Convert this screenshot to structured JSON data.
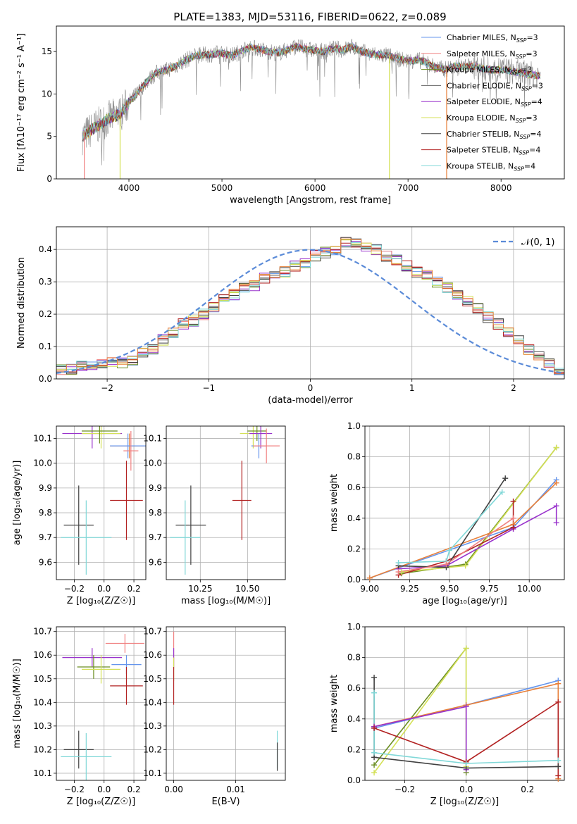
{
  "figure": {
    "title": "PLATE=1383, MJD=53116, FIBERID=0622, z=0.089"
  },
  "colors": {
    "chabrier_miles": "#6495ed",
    "salpeter_miles": "#f08080",
    "kroupa_miles": "#6b8e23",
    "chabrier_elodie": "#666666",
    "salpeter_elodie": "#9932cc",
    "kroupa_elodie": "#d4e157",
    "chabrier_stelib": "#404040",
    "salpeter_stelib": "#b22222",
    "kroupa_stelib": "#80d8d8",
    "orange": "#e8803a",
    "grid": "#b0b0b0"
  },
  "chart_data": [
    {
      "id": "spectrum",
      "type": "line",
      "xlabel": "wavelength [Angstrom, rest frame]",
      "ylabel": "Flux [f$_\\lambda$10$^{-17}$ erg cm$^{-2}$ s$^{-1}$ A$^{-1}$]",
      "ylabel_display": "Flux [fλ10⁻¹⁷ erg cm⁻² s⁻¹ A⁻¹]",
      "xlim": [
        3220,
        8680
      ],
      "ylim": [
        0,
        18
      ],
      "xticks": [
        4000,
        5000,
        6000,
        7000,
        8000
      ],
      "yticks": [
        0,
        5,
        10,
        15
      ],
      "grid": false,
      "legend_placement": "right",
      "series": [
        {
          "name": "Chabrier MILES, N_SSP=3",
          "label_main": "Chabrier MILES, N",
          "label_sub": "SSP",
          "label_end": "=3",
          "color_key": "chabrier_miles"
        },
        {
          "name": "Salpeter MILES, N_SSP=3",
          "label_main": "Salpeter MILES, N",
          "label_sub": "SSP",
          "label_end": "=3",
          "color_key": "salpeter_miles"
        },
        {
          "name": "Kroupa MILES, N_SSP=3",
          "label_main": "Kroupa MILES, N",
          "label_sub": "SSP",
          "label_end": "=3",
          "color_key": "kroupa_miles"
        },
        {
          "name": "Chabrier ELODIE, N_SSP=3",
          "label_main": "Chabrier ELODIE, N",
          "label_sub": "SSP",
          "label_end": "=3",
          "color_key": "chabrier_elodie"
        },
        {
          "name": "Salpeter ELODIE, N_SSP=4",
          "label_main": "Salpeter ELODIE, N",
          "label_sub": "SSP",
          "label_end": "=4",
          "color_key": "salpeter_elodie"
        },
        {
          "name": "Kroupa ELODIE, N_SSP=3",
          "label_main": "Kroupa ELODIE, N",
          "label_sub": "SSP",
          "label_end": "=3",
          "color_key": "kroupa_elodie"
        },
        {
          "name": "Chabrier STELIB, N_SSP=4",
          "label_main": "Chabrier STELIB, N",
          "label_sub": "SSP",
          "label_end": "=4",
          "color_key": "chabrier_stelib"
        },
        {
          "name": "Salpeter STELIB, N_SSP=4",
          "label_main": "Salpeter STELIB, N",
          "label_sub": "SSP",
          "label_end": "=4",
          "color_key": "salpeter_stelib"
        },
        {
          "name": "Kroupa STELIB, N_SSP=4",
          "label_main": "Kroupa STELIB, N",
          "label_sub": "SSP",
          "label_end": "=4",
          "color_key": "kroupa_stelib"
        }
      ],
      "continuum": {
        "x": [
          3500,
          3600,
          3700,
          3800,
          3900,
          4000,
          4100,
          4200,
          4300,
          4400,
          4500,
          4600,
          4700,
          4800,
          4900,
          5000,
          5100,
          5200,
          5300,
          5400,
          5500,
          5600,
          5700,
          5800,
          5900,
          6000,
          6100,
          6200,
          6300,
          6400,
          6500,
          6600,
          6700,
          6800,
          6900,
          7000,
          7100,
          7200,
          7300,
          7400,
          7500,
          7600,
          7700,
          7800,
          7900,
          8000,
          8100,
          8200,
          8300,
          8400
        ],
        "y": [
          5.0,
          5.8,
          6.5,
          7.2,
          7.6,
          9.0,
          10.2,
          11.6,
          12.5,
          12.8,
          13.3,
          13.9,
          14.5,
          14.6,
          14.7,
          14.8,
          14.5,
          15.0,
          15.5,
          15.3,
          15.0,
          14.8,
          15.2,
          15.6,
          15.3,
          15.1,
          15.0,
          15.4,
          15.2,
          15.6,
          15.0,
          14.7,
          14.6,
          14.5,
          14.1,
          13.9,
          14.0,
          13.7,
          13.1,
          12.9,
          13.3,
          13.2,
          13.3,
          13.0,
          12.8,
          12.9,
          12.7,
          12.5,
          12.3,
          12.2
        ]
      },
      "notable_drops": [
        {
          "x": 3520,
          "to": 0,
          "color_key": "salpeter_miles"
        },
        {
          "x": 3905,
          "to": 0,
          "color_key": "kroupa_elodie"
        },
        {
          "x": 6800,
          "to": 0,
          "color_key": "kroupa_elodie"
        },
        {
          "x": 7415,
          "to": 0,
          "color_key": "orange"
        }
      ]
    },
    {
      "id": "residuals",
      "type": "histogram",
      "xlabel": "(data-model)/error",
      "ylabel": "Normed distribution",
      "xlim": [
        -2.5,
        2.5
      ],
      "ylim": [
        0,
        0.47
      ],
      "xticks": [
        -2,
        -1,
        0,
        1,
        2
      ],
      "yticks": [
        0.0,
        0.1,
        0.2,
        0.3,
        0.4
      ],
      "grid": true,
      "legend_placement": "top-right",
      "legend_label": "𝒩(0, 1)",
      "reference_curve": "standard normal, dashed",
      "bin_width": 0.1,
      "approx_heights": [
        0.03,
        0.03,
        0.04,
        0.04,
        0.05,
        0.05,
        0.05,
        0.06,
        0.08,
        0.09,
        0.12,
        0.14,
        0.17,
        0.18,
        0.2,
        0.22,
        0.25,
        0.26,
        0.28,
        0.29,
        0.31,
        0.32,
        0.33,
        0.35,
        0.36,
        0.38,
        0.39,
        0.4,
        0.42,
        0.42,
        0.41,
        0.4,
        0.38,
        0.37,
        0.35,
        0.33,
        0.32,
        0.3,
        0.28,
        0.26,
        0.24,
        0.22,
        0.19,
        0.17,
        0.14,
        0.12,
        0.09,
        0.07,
        0.05,
        0.03
      ]
    },
    {
      "id": "age_vs_Z",
      "type": "scatter",
      "xlabel": "Z [log₁₀(Z/Z☉)]",
      "ylabel": "age  [log₁₀(age/yr)]",
      "xlim": [
        -0.32,
        0.28
      ],
      "ylim": [
        9.53,
        10.15
      ],
      "xticks": [
        -0.2,
        0.0,
        0.2
      ],
      "yticks": [
        9.6,
        9.7,
        9.8,
        9.9,
        10.0,
        10.1
      ],
      "grid": true,
      "points": [
        {
          "x": -0.08,
          "y": 10.12,
          "xerr": 0.2,
          "yerr": 0.06,
          "color_key": "salpeter_elodie"
        },
        {
          "x": -0.02,
          "y": 10.12,
          "xerr": 0.13,
          "yerr": 0.06,
          "color_key": "kroupa_elodie"
        },
        {
          "x": -0.03,
          "y": 10.13,
          "xerr": 0.12,
          "yerr": 0.05,
          "color_key": "kroupa_miles"
        },
        {
          "x": 0.17,
          "y": 10.07,
          "xerr": 0.13,
          "yerr": 0.05,
          "color_key": "orange"
        },
        {
          "x": 0.16,
          "y": 10.07,
          "xerr": 0.12,
          "yerr": 0.05,
          "color_key": "chabrier_miles"
        },
        {
          "x": 0.18,
          "y": 10.05,
          "xerr": 0.05,
          "yerr": 0.08,
          "color_key": "salpeter_miles"
        },
        {
          "x": 0.15,
          "y": 9.85,
          "xerr": 0.11,
          "yerr": 0.16,
          "color_key": "salpeter_stelib"
        },
        {
          "x": -0.17,
          "y": 9.75,
          "xerr": 0.1,
          "yerr": 0.16,
          "color_key": "chabrier_stelib"
        },
        {
          "x": -0.12,
          "y": 9.7,
          "xerr": 0.17,
          "yerr": 0.15,
          "color_key": "kroupa_stelib"
        }
      ]
    },
    {
      "id": "age_vs_mass",
      "type": "scatter",
      "xlabel": "mass [log₁₀(M/M☉)]",
      "ylabel": "",
      "xlim": [
        10.07,
        10.7
      ],
      "ylim": [
        9.53,
        10.15
      ],
      "xticks": [
        10.25,
        10.5
      ],
      "yticks": [
        9.6,
        9.7,
        9.8,
        9.9,
        10.0,
        10.1
      ],
      "grid": true,
      "points": [
        {
          "x": 10.53,
          "y": 10.12,
          "xerr": 0.07,
          "yerr": 0.06,
          "color_key": "kroupa_elodie"
        },
        {
          "x": 10.55,
          "y": 10.13,
          "xerr": 0.05,
          "yerr": 0.04,
          "color_key": "kroupa_miles"
        },
        {
          "x": 10.57,
          "y": 10.12,
          "xerr": 0.06,
          "yerr": 0.06,
          "color_key": "salpeter_elodie"
        },
        {
          "x": 10.56,
          "y": 10.07,
          "xerr": 0.04,
          "yerr": 0.05,
          "color_key": "chabrier_miles"
        },
        {
          "x": 10.6,
          "y": 10.07,
          "xerr": 0.07,
          "yerr": 0.07,
          "color_key": "salpeter_miles"
        },
        {
          "x": 10.47,
          "y": 9.85,
          "xerr": 0.05,
          "yerr": 0.16,
          "color_key": "salpeter_stelib"
        },
        {
          "x": 10.2,
          "y": 9.75,
          "xerr": 0.08,
          "yerr": 0.16,
          "color_key": "chabrier_stelib"
        },
        {
          "x": 10.17,
          "y": 9.7,
          "xerr": 0.08,
          "yerr": 0.15,
          "color_key": "kroupa_stelib"
        }
      ]
    },
    {
      "id": "weight_vs_age",
      "type": "line",
      "xlabel": "age  [log₁₀(age/yr)]",
      "ylabel": "mass weight",
      "xlim": [
        8.97,
        10.22
      ],
      "ylim": [
        0,
        1
      ],
      "xticks": [
        9.0,
        9.25,
        9.5,
        9.75,
        10.0
      ],
      "yticks": [
        0.0,
        0.2,
        0.4,
        0.6,
        0.8,
        1.0
      ],
      "grid": true,
      "series": [
        {
          "color_key": "kroupa_miles",
          "x": [
            9.2,
            9.6,
            10.17
          ],
          "y": [
            0.04,
            0.1,
            0.86
          ]
        },
        {
          "color_key": "kroupa_elodie",
          "x": [
            9.2,
            9.6,
            10.17
          ],
          "y": [
            0.05,
            0.09,
            0.86
          ]
        },
        {
          "color_key": "chabrier_miles",
          "x": [
            9.0,
            9.9,
            10.17
          ],
          "y": [
            0.01,
            0.34,
            0.65
          ]
        },
        {
          "color_key": "orange",
          "x": [
            9.0,
            9.9,
            10.17
          ],
          "y": [
            0.01,
            0.36,
            0.63
          ]
        },
        {
          "color_key": "salpeter_elodie",
          "x": [
            9.18,
            9.48,
            9.9,
            10.17,
            10.17
          ],
          "y": [
            0.07,
            0.09,
            0.33,
            0.48,
            0.37
          ]
        },
        {
          "color_key": "salpeter_stelib",
          "x": [
            9.18,
            9.48,
            9.9,
            9.9
          ],
          "y": [
            0.03,
            0.12,
            0.34,
            0.51
          ]
        },
        {
          "color_key": "chabrier_stelib",
          "x": [
            9.18,
            9.48,
            9.85
          ],
          "y": [
            0.09,
            0.08,
            0.66
          ]
        },
        {
          "color_key": "kroupa_stelib",
          "x": [
            9.18,
            9.48,
            9.5,
            9.83
          ],
          "y": [
            0.11,
            0.12,
            0.19,
            0.57
          ]
        },
        {
          "color_key": "salpeter_miles",
          "x": [
            9.18,
            9.48,
            9.9
          ],
          "y": [
            0.05,
            0.1,
            0.4
          ]
        }
      ]
    },
    {
      "id": "mass_vs_Z",
      "type": "scatter",
      "xlabel": "Z [log₁₀(Z/Z☉)]",
      "ylabel": "mass [log₁₀(M/M☉)]",
      "xlim": [
        -0.32,
        0.28
      ],
      "ylim": [
        10.07,
        10.72
      ],
      "xticks": [
        -0.2,
        0.0,
        0.2
      ],
      "yticks": [
        10.1,
        10.2,
        10.3,
        10.4,
        10.5,
        10.6,
        10.7
      ],
      "grid": true,
      "points": [
        {
          "x": 0.14,
          "y": 10.65,
          "xerr": 0.13,
          "yerr": 0.04,
          "color_key": "salpeter_miles"
        },
        {
          "x": -0.08,
          "y": 10.59,
          "xerr": 0.2,
          "yerr": 0.04,
          "color_key": "salpeter_elodie"
        },
        {
          "x": 0.15,
          "y": 10.56,
          "xerr": 0.1,
          "yerr": 0.04,
          "color_key": "chabrier_miles"
        },
        {
          "x": -0.07,
          "y": 10.55,
          "xerr": 0.11,
          "yerr": 0.05,
          "color_key": "kroupa_miles"
        },
        {
          "x": -0.02,
          "y": 10.54,
          "xerr": 0.13,
          "yerr": 0.06,
          "color_key": "kroupa_elodie"
        },
        {
          "x": 0.15,
          "y": 10.47,
          "xerr": 0.11,
          "yerr": 0.08,
          "color_key": "salpeter_stelib"
        },
        {
          "x": -0.17,
          "y": 10.2,
          "xerr": 0.1,
          "yerr": 0.08,
          "color_key": "chabrier_stelib"
        },
        {
          "x": -0.12,
          "y": 10.17,
          "xerr": 0.17,
          "yerr": 0.1,
          "color_key": "kroupa_stelib"
        }
      ]
    },
    {
      "id": "mass_vs_EBV",
      "type": "scatter",
      "xlabel": "E(B-V)",
      "ylabel": "",
      "xlim": [
        -0.0012,
        0.018
      ],
      "ylim": [
        10.07,
        10.72
      ],
      "xticks": [
        0.0,
        0.01
      ],
      "xtick_labels": [
        "0.00",
        "0.01"
      ],
      "yticks": [
        10.1,
        10.2,
        10.3,
        10.4,
        10.5,
        10.6,
        10.7
      ],
      "grid": true,
      "points": [
        {
          "x": 0.0,
          "y": 10.62,
          "xerr": 0,
          "yerr": 0.08,
          "color_key": "salpeter_miles"
        },
        {
          "x": 0.0,
          "y": 10.59,
          "xerr": 0,
          "yerr": 0.04,
          "color_key": "salpeter_elodie"
        },
        {
          "x": 0.0,
          "y": 10.54,
          "xerr": 0,
          "yerr": 0.05,
          "color_key": "kroupa_elodie"
        },
        {
          "x": 0.0,
          "y": 10.47,
          "xerr": 0,
          "yerr": 0.08,
          "color_key": "salpeter_stelib"
        },
        {
          "x": 0.0167,
          "y": 10.2,
          "xerr": 0,
          "yerr": 0.08,
          "color_key": "kroupa_stelib"
        },
        {
          "x": 0.0167,
          "y": 10.17,
          "xerr": 0,
          "yerr": 0.06,
          "color_key": "chabrier_stelib"
        }
      ]
    },
    {
      "id": "weight_vs_Z",
      "type": "line",
      "xlabel": "Z [log₁₀(Z/Z☉)]",
      "ylabel": "mass weight",
      "xlim": [
        -0.33,
        0.32
      ],
      "ylim": [
        0,
        1
      ],
      "xticks": [
        -0.2,
        0.0,
        0.2
      ],
      "yticks": [
        0.0,
        0.2,
        0.4,
        0.6,
        0.8,
        1.0
      ],
      "grid": true,
      "series": [
        {
          "color_key": "kroupa_miles",
          "x": [
            -0.3,
            0.0,
            0.0
          ],
          "y": [
            0.1,
            0.86,
            0.05
          ]
        },
        {
          "color_key": "kroupa_elodie",
          "x": [
            -0.3,
            0.0,
            0.0
          ],
          "y": [
            0.05,
            0.86,
            0.09
          ]
        },
        {
          "color_key": "chabrier_miles",
          "x": [
            -0.3,
            0.0,
            0.3
          ],
          "y": [
            0.34,
            0.49,
            0.65
          ]
        },
        {
          "color_key": "orange",
          "x": [
            -0.3,
            0.0,
            0.3,
            0.3
          ],
          "y": [
            0.35,
            0.49,
            0.63,
            0.01
          ]
        },
        {
          "color_key": "salpeter_elodie",
          "x": [
            -0.3,
            0.0,
            0.0
          ],
          "y": [
            0.35,
            0.48,
            0.07
          ]
        },
        {
          "color_key": "salpeter_stelib",
          "x": [
            -0.3,
            0.0,
            0.3,
            0.3
          ],
          "y": [
            0.34,
            0.12,
            0.51,
            0.03
          ]
        },
        {
          "color_key": "chabrier_stelib",
          "x": [
            -0.3,
            -0.3,
            0.0,
            0.3
          ],
          "y": [
            0.67,
            0.15,
            0.08,
            0.09
          ]
        },
        {
          "color_key": "kroupa_stelib",
          "x": [
            -0.3,
            -0.3,
            0.0,
            0.3
          ],
          "y": [
            0.57,
            0.18,
            0.11,
            0.13
          ]
        }
      ]
    }
  ]
}
